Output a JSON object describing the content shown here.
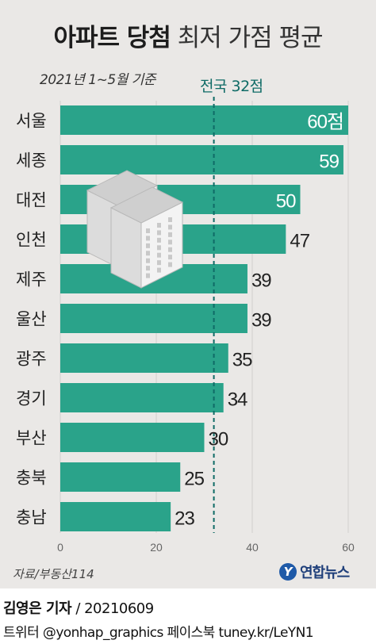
{
  "title": {
    "bold": "아파트 당첨",
    "light": "최저 가점 평균"
  },
  "subtitle": "2021년 1~5월 기준",
  "reference_label": "전국 32점",
  "source": "자료/부동산114",
  "logo": {
    "mark": "Y",
    "text": "연합뉴스"
  },
  "byline": {
    "reporter": "김영은 기자",
    "date": "/ 20210609"
  },
  "social": "트위터 @yonhap_graphics  페이스북 tuney.kr/LeYN1",
  "colors": {
    "bar": "#2aa38a",
    "refline": "#0f6b66",
    "panel": "#eae8e6",
    "inside_label": "#ffffff",
    "outside_label": "#222222"
  },
  "chart_data": {
    "type": "bar",
    "orientation": "horizontal",
    "categories": [
      "서울",
      "세종",
      "대전",
      "인천",
      "제주",
      "울산",
      "광주",
      "경기",
      "부산",
      "충북",
      "충남"
    ],
    "values": [
      60,
      59,
      50,
      47,
      39,
      39,
      35,
      34,
      30,
      25,
      23
    ],
    "value_labels": [
      "60점",
      "59",
      "50",
      "47",
      "39",
      "39",
      "35",
      "34",
      "30",
      "25",
      "23"
    ],
    "xlim": [
      0,
      60
    ],
    "xticks": [
      0,
      20,
      40,
      60
    ],
    "reference_line": {
      "value": 32,
      "style": "dashed"
    },
    "grid": true,
    "legend": "none"
  }
}
